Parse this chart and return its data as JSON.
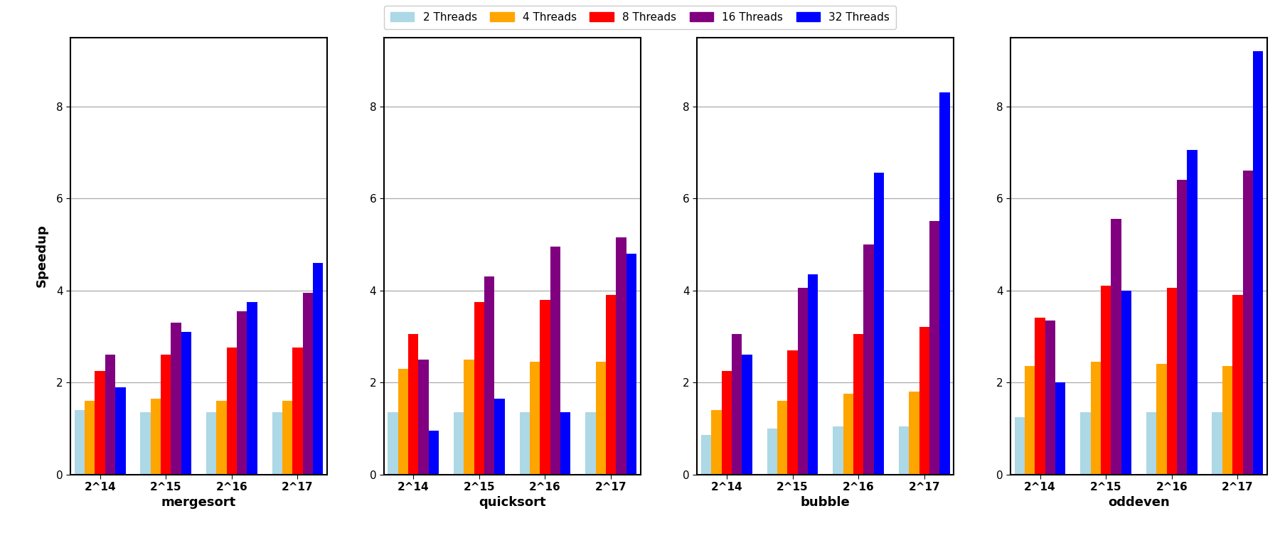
{
  "algorithms": [
    "mergesort",
    "quicksort",
    "bubble",
    "oddeven"
  ],
  "sizes": [
    "2^14",
    "2^15",
    "2^16",
    "2^17"
  ],
  "thread_labels": [
    "2 Threads",
    "4 Threads",
    "8 Threads",
    "16 Threads",
    "32 Threads"
  ],
  "thread_colors": [
    "#ADD8E6",
    "#FFA500",
    "#FF0000",
    "#800080",
    "#0000FF"
  ],
  "data": {
    "mergesort": {
      "2 Threads": [
        1.4,
        1.35,
        1.35,
        1.35
      ],
      "4 Threads": [
        1.6,
        1.65,
        1.6,
        1.6
      ],
      "8 Threads": [
        2.25,
        2.6,
        2.75,
        2.75
      ],
      "16 Threads": [
        2.6,
        3.3,
        3.55,
        3.95
      ],
      "32 Threads": [
        1.9,
        3.1,
        3.75,
        4.6
      ]
    },
    "quicksort": {
      "2 Threads": [
        1.35,
        1.35,
        1.35,
        1.35
      ],
      "4 Threads": [
        2.3,
        2.5,
        2.45,
        2.45
      ],
      "8 Threads": [
        3.05,
        3.75,
        3.8,
        3.9
      ],
      "16 Threads": [
        2.5,
        4.3,
        4.95,
        5.15
      ],
      "32 Threads": [
        0.95,
        1.65,
        1.35,
        4.8
      ]
    },
    "bubble": {
      "2 Threads": [
        0.85,
        1.0,
        1.05,
        1.05
      ],
      "4 Threads": [
        1.4,
        1.6,
        1.75,
        1.8
      ],
      "8 Threads": [
        2.25,
        2.7,
        3.05,
        3.2
      ],
      "16 Threads": [
        3.05,
        4.05,
        5.0,
        5.5
      ],
      "32 Threads": [
        2.6,
        4.35,
        6.55,
        8.3
      ]
    },
    "oddeven": {
      "2 Threads": [
        1.25,
        1.35,
        1.35,
        1.35
      ],
      "4 Threads": [
        2.35,
        2.45,
        2.4,
        2.35
      ],
      "8 Threads": [
        3.4,
        4.1,
        4.05,
        3.9
      ],
      "16 Threads": [
        3.35,
        5.55,
        6.4,
        6.6
      ],
      "32 Threads": [
        2.0,
        4.0,
        7.05,
        9.2
      ]
    }
  },
  "ylabel": "Speedup",
  "ylim": [
    0,
    9.5
  ],
  "yticks": [
    0,
    2,
    4,
    6,
    8
  ],
  "background_color": "#FFFFFF",
  "grid_color": "#AAAAAA",
  "legend_ncol": 5,
  "bar_width": 0.155,
  "label_fontsize": 13,
  "tick_fontsize": 11,
  "legend_fontsize": 11
}
